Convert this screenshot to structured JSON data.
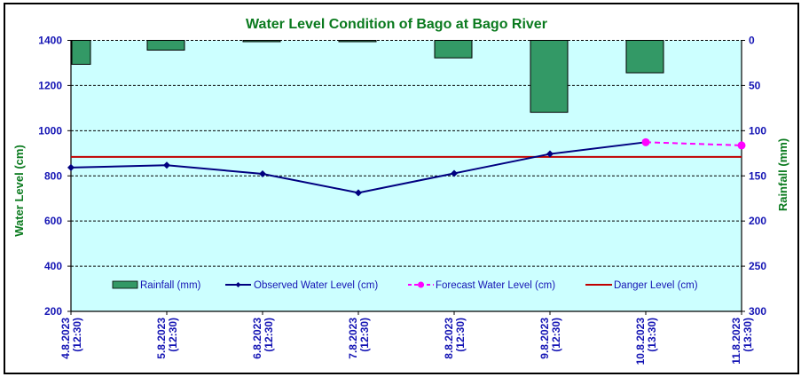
{
  "chart_data": {
    "type": "line",
    "title": "Water Level Condition of Bago at Bago River",
    "xlabel": "",
    "ylabel": "Water Level (cm)",
    "y2label": "Rainfall (mm)",
    "categories": [
      "4.8.2023 (12:30)",
      "5.8.2023 (12:30)",
      "6.8.2023 (12:30)",
      "7.8.2023 (12:30)",
      "8.8.2023 (12:30)",
      "9.8.2023 (12:30)",
      "10.8.2023 (13:30)",
      "11.8.2023 (13:30)"
    ],
    "category_lines": [
      [
        "4.8.2023",
        "(12:30)"
      ],
      [
        "5.8.2023",
        "(12:30)"
      ],
      [
        "6.8.2023",
        "(12:30)"
      ],
      [
        "7.8.2023",
        "(12:30)"
      ],
      [
        "8.8.2023",
        "(12:30)"
      ],
      [
        "9.8.2023",
        "(12:30)"
      ],
      [
        "10.8.2023",
        "(13:30)"
      ],
      [
        "11.8.2023",
        "(13:30)"
      ]
    ],
    "ylim": [
      200,
      1400
    ],
    "yticks": [
      200,
      400,
      600,
      800,
      1000,
      1200,
      1400
    ],
    "y2lim": [
      0,
      300
    ],
    "y2_inverted": true,
    "y2ticks": [
      0,
      50,
      100,
      150,
      200,
      250,
      300
    ],
    "grid": true,
    "legend_position": "bottom-inside",
    "series": [
      {
        "name": "Rainfall (mm)",
        "type": "bar",
        "axis": "right",
        "color": "#339966",
        "values": [
          26.5,
          10.8,
          1.0,
          1.0,
          19.4,
          79.6,
          35.9,
          null
        ]
      },
      {
        "name": "Observed Water Level (cm)",
        "type": "line",
        "axis": "left",
        "color": "#000080",
        "marker": "diamond",
        "values": [
          837,
          847,
          809,
          725,
          811,
          897,
          949,
          null
        ]
      },
      {
        "name": "Forecast Water Level (cm)",
        "type": "line",
        "axis": "left",
        "color": "#ff00ff",
        "marker": "circle",
        "dashed": true,
        "values": [
          null,
          null,
          null,
          null,
          null,
          null,
          949,
          935
        ]
      },
      {
        "name": "Danger Level (cm)",
        "type": "line",
        "axis": "left",
        "color": "#c00000",
        "constant": 884
      }
    ],
    "colors": {
      "plot_bg": "#ccffff",
      "tick_text": "#1414b4",
      "axis_title": "#0a7a1e"
    }
  }
}
